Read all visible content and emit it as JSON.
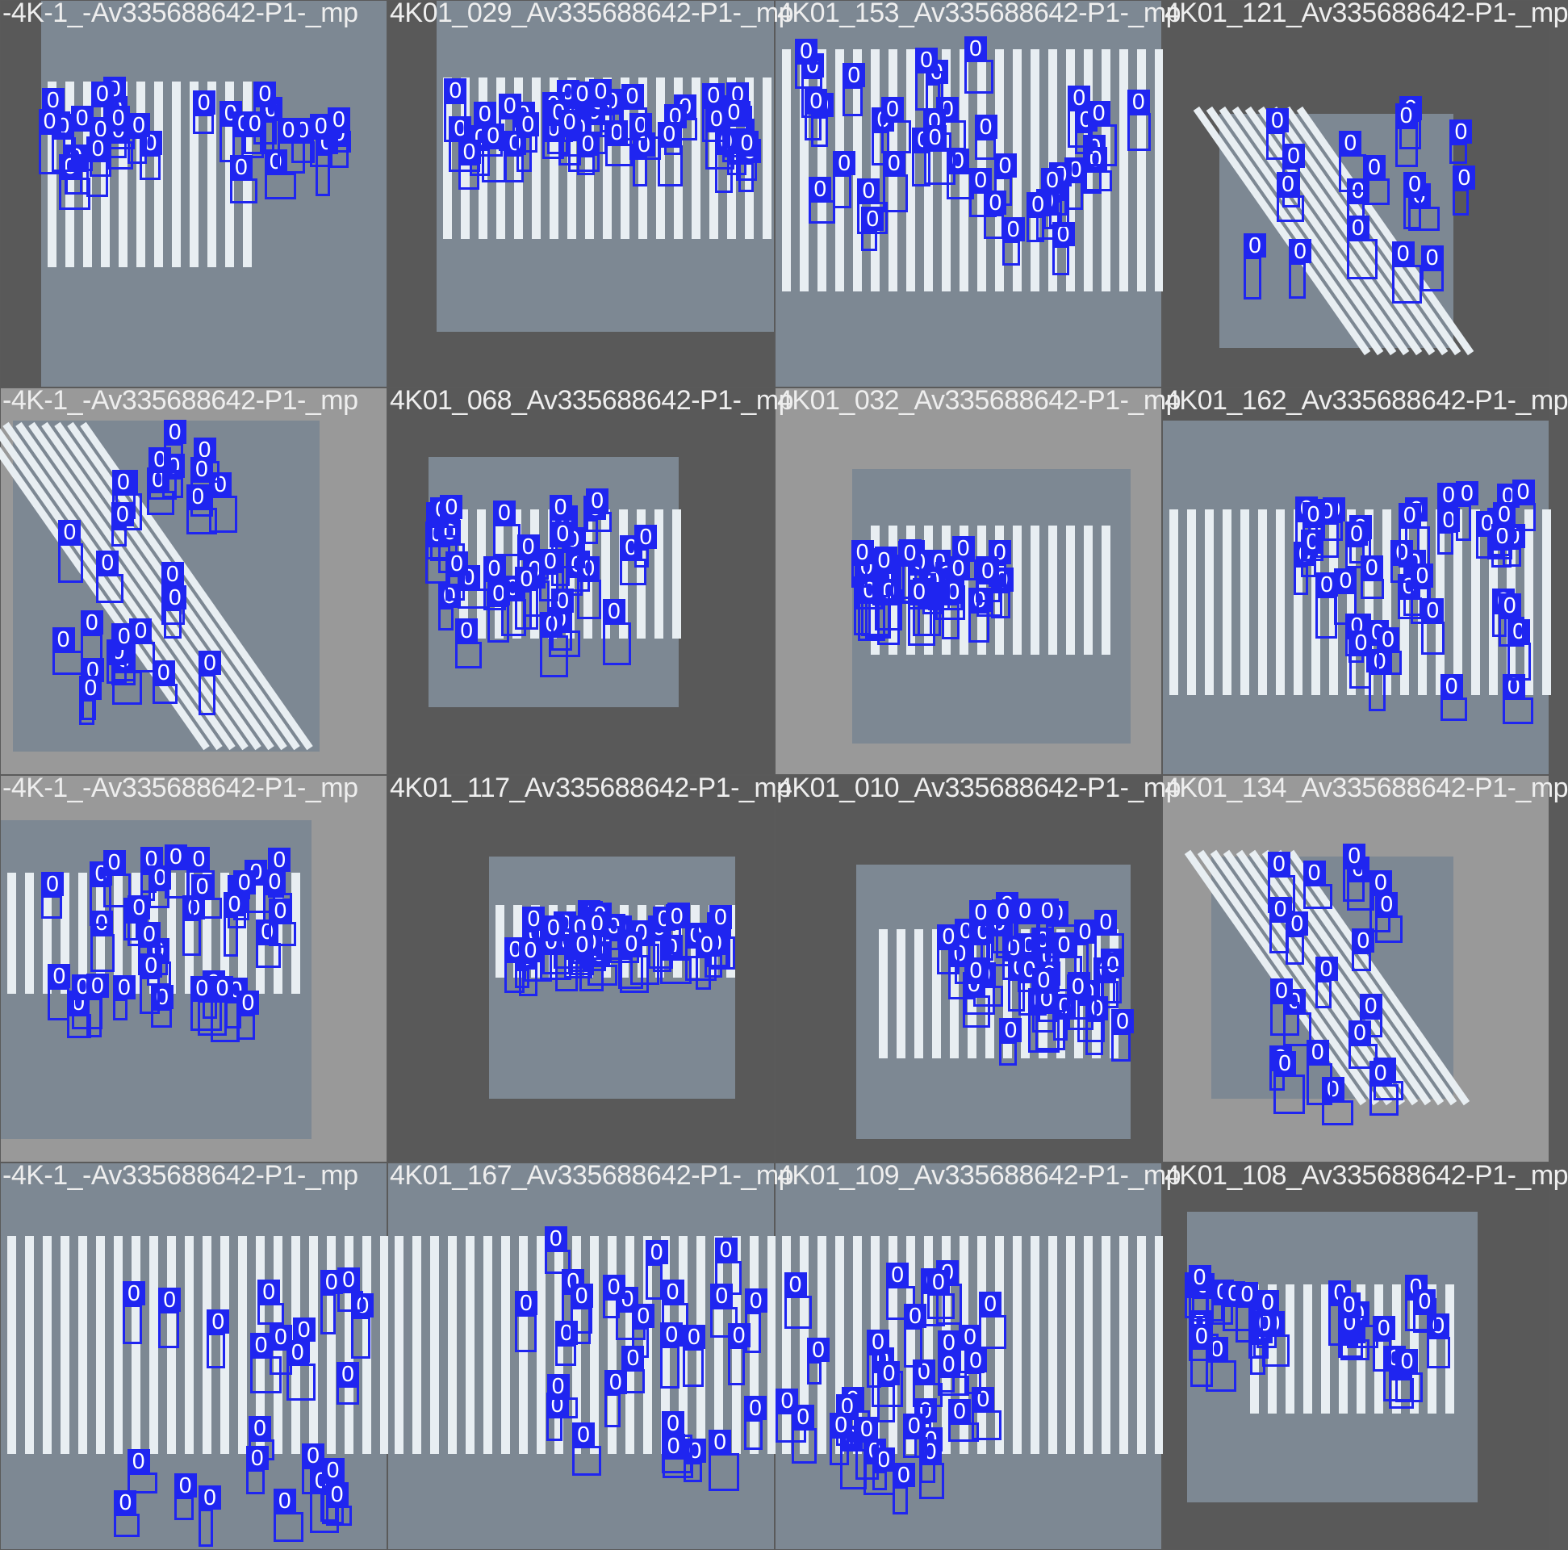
{
  "labels": {
    "filename_prefix": "-4K-1_-Av335688642-P1-_mp",
    "class_id": "0"
  },
  "colors": {
    "box": "#1f25f0",
    "road": "#7d8893",
    "stripe": "#e8eef2",
    "pad_dark": "#595959",
    "pad_light": "#999999"
  },
  "tiles": [
    {
      "caption": "-4K-1_-Av335688642-P1-_mp",
      "boxes": 30
    },
    {
      "caption": "4K01_029_Av335688642-P1-_mp",
      "boxes": 40
    },
    {
      "caption": "4K01_153_Av335688642-P1-_mp",
      "boxes": 38
    },
    {
      "caption": "4K01_121_Av335688642-P1-_mp",
      "boxes": 17
    },
    {
      "caption": "-4K-1_-Av335688642-P1-_mp",
      "boxes": 26
    },
    {
      "caption": "4K01_068_Av335688642-P1-_mp",
      "boxes": 32
    },
    {
      "caption": "4K01_032_Av335688642-P1-_mp",
      "boxes": 30
    },
    {
      "caption": "4K01_162_Av335688642-P1-_mp",
      "boxes": 40
    },
    {
      "caption": "-4K-1_-Av335688642-P1-_mp",
      "boxes": 36
    },
    {
      "caption": "4K01_117_Av335688642-P1-_mp",
      "boxes": 36
    },
    {
      "caption": "4K01_010_Av335688642-P1-_mp",
      "boxes": 38
    },
    {
      "caption": "4K01_134_Av335688642-P1-_mp",
      "boxes": 20
    },
    {
      "caption": "-4K-1_-Av335688642-P1-_mp",
      "boxes": 24
    },
    {
      "caption": "4K01_167_Av335688642-P1-_mp",
      "boxes": 26
    },
    {
      "caption": "4K01_109_Av335688642-P1-_mp",
      "boxes": 32
    },
    {
      "caption": "4K01_108_Av335688642-P1-_mp",
      "boxes": 26
    }
  ]
}
